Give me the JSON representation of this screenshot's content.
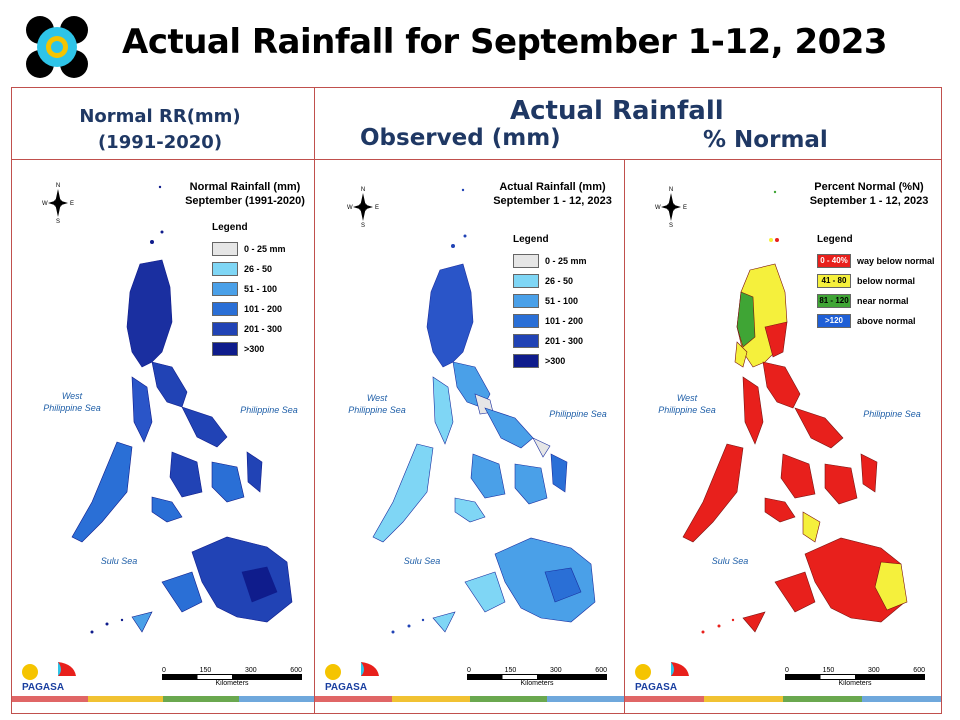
{
  "title": "Actual Rainfall for September 1-12, 2023",
  "headers": {
    "normal_line1": "Normal RR(mm)",
    "normal_line2": "(1991-2020)",
    "actual": "Actual Rainfall",
    "observed": "Observed (mm)",
    "percent": "% Normal"
  },
  "panels": [
    {
      "title_line1": "Normal Rainfall (mm)",
      "title_line2": "September (1991-2020)",
      "legend_title": "Legend",
      "legend": [
        {
          "label": "0 - 25 mm",
          "color": "#e6e6e6"
        },
        {
          "label": "26 - 50",
          "color": "#7fd6f5"
        },
        {
          "label": "51 - 100",
          "color": "#4aa0e8"
        },
        {
          "label": "101 - 200",
          "color": "#2a6fd6"
        },
        {
          "label": "201 - 300",
          "color": "#2143b5"
        },
        {
          "label": ">300",
          "color": "#0f1c8c"
        }
      ],
      "sea_west": "West\nPhilippine Sea",
      "sea_east": "Philippine Sea",
      "sea_sulu": "Sulu Sea"
    },
    {
      "title_line1": "Actual Rainfall (mm)",
      "title_line2": "September 1 - 12, 2023",
      "legend_title": "Legend",
      "legend": [
        {
          "label": "0 - 25 mm",
          "color": "#e6e6e6"
        },
        {
          "label": "26 - 50",
          "color": "#7fd6f5"
        },
        {
          "label": "51 - 100",
          "color": "#4aa0e8"
        },
        {
          "label": "101 - 200",
          "color": "#2a6fd6"
        },
        {
          "label": "201 - 300",
          "color": "#2143b5"
        },
        {
          "label": ">300",
          "color": "#0f1c8c"
        }
      ],
      "sea_west": "West\nPhilippine Sea",
      "sea_east": "Philippine Sea",
      "sea_sulu": "Sulu Sea"
    },
    {
      "title_line1": "Percent Normal (%N)",
      "title_line2": "September 1 - 12, 2023",
      "legend_title": "Legend",
      "legend": [
        {
          "swatch": "0 - 40%",
          "label": "way below normal",
          "color": "#e8201c"
        },
        {
          "swatch": "41 - 80",
          "label": "below normal",
          "color": "#f5f03c"
        },
        {
          "swatch": "81 - 120",
          "label": "near normal",
          "color": "#3fa535"
        },
        {
          "swatch": ">120",
          "label": "above normal",
          "color": "#1f5fd6"
        }
      ],
      "sea_west": "West\nPhilippine Sea",
      "sea_east": "Philippine Sea",
      "sea_sulu": "Sulu Sea"
    }
  ],
  "scale": {
    "ticks": [
      "0",
      "150",
      "300",
      "600"
    ],
    "unit": "Kilometers"
  },
  "brand": "PAGASA",
  "compass": {
    "n": "N",
    "s": "S",
    "e": "E",
    "w": "W"
  }
}
